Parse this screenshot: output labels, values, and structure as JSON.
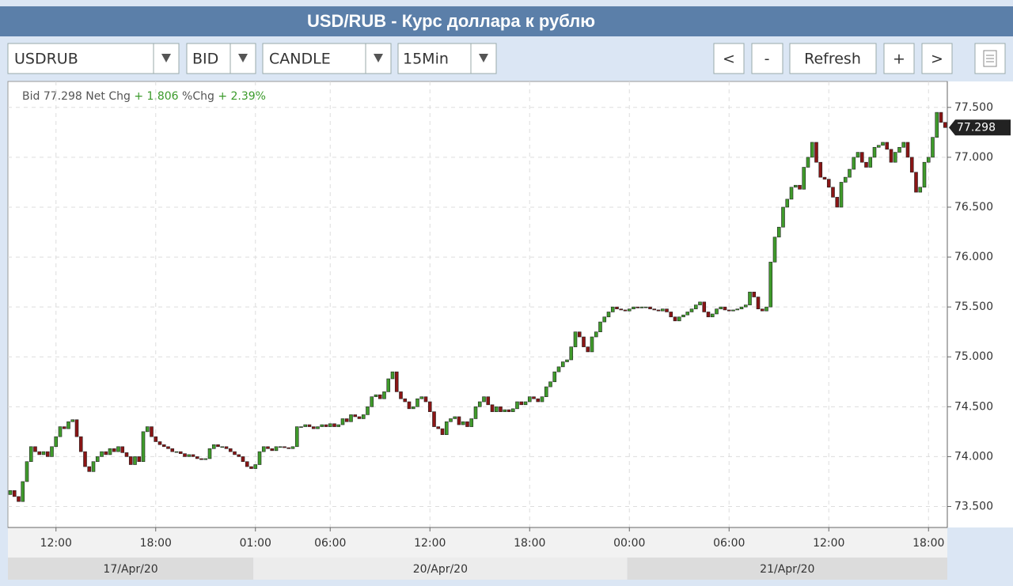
{
  "header": {
    "title": "USD/RUB - Курс доллара к рублю"
  },
  "toolbar": {
    "symbol": "USDRUB",
    "price_type": "BID",
    "chart_style": "CANDLE",
    "interval": "15Min",
    "buttons": [
      "<",
      "-",
      "Refresh",
      "+",
      ">"
    ]
  },
  "chart_data": {
    "type": "candlestick",
    "info": {
      "bid_label": "Bid",
      "net_chg_label": "Net Chg",
      "net_chg": "+ 1.806",
      "pct_chg_label": "%Chg",
      "pct_chg": "+ 2.39%"
    },
    "up_color": "#3f9b2b",
    "down_color": "#8a1515",
    "open": [
      73.62,
      73.66,
      73.6,
      73.55,
      73.75,
      73.95,
      74.1,
      74.05,
      74.02,
      74.05,
      74.0,
      74.1,
      74.2,
      74.3,
      74.28,
      74.35,
      74.37,
      74.2,
      74.05,
      73.9,
      73.85,
      73.95,
      74.0,
      74.05,
      74.02,
      74.08,
      74.05,
      74.1,
      74.04,
      74.0,
      73.92,
      74.0,
      73.95,
      74.25,
      74.3,
      74.2,
      74.15,
      74.12,
      74.1,
      74.08,
      74.05,
      74.05,
      74.03,
      74.0,
      74.02,
      74.0,
      73.98,
      73.97,
      73.98,
      74.08,
      74.12,
      74.1,
      74.1,
      74.08,
      74.05,
      74.02,
      74.0,
      73.95,
      73.9,
      73.88,
      73.92,
      74.05,
      74.1,
      74.08,
      74.06,
      74.1,
      74.1,
      74.09,
      74.08,
      74.1,
      74.3,
      74.3,
      74.32,
      74.3,
      74.28,
      74.3,
      74.32,
      74.3,
      74.33,
      74.3,
      74.32,
      74.38,
      74.35,
      74.42,
      74.4,
      74.38,
      74.42,
      74.5,
      74.6,
      74.62,
      74.58,
      74.65,
      74.78,
      74.85,
      74.65,
      74.58,
      74.55,
      74.48,
      74.5,
      74.58,
      74.6,
      74.55,
      74.45,
      74.3,
      74.28,
      74.22,
      74.35,
      74.38,
      74.4,
      74.32,
      74.35,
      74.3,
      74.38,
      74.5,
      74.55,
      74.6,
      74.52,
      74.45,
      74.5,
      74.45,
      74.47,
      74.45,
      74.48,
      74.55,
      74.52,
      74.55,
      74.6,
      74.58,
      74.55,
      74.6,
      74.7,
      74.75,
      74.85,
      74.9,
      74.95,
      74.97,
      75.1,
      75.25,
      75.2,
      75.1,
      75.05,
      75.2,
      75.25,
      75.35,
      75.4,
      75.45,
      75.5,
      75.48,
      75.47,
      75.46,
      75.48,
      75.5,
      75.49,
      75.5,
      75.5,
      75.48,
      75.47,
      75.46,
      75.48,
      75.45,
      75.4,
      75.36,
      75.4,
      75.42,
      75.45,
      75.48,
      75.52,
      75.55,
      75.45,
      75.4,
      75.43,
      75.48,
      75.5,
      75.47,
      75.46,
      75.47,
      75.48,
      75.5,
      75.52,
      75.65,
      75.6,
      75.48,
      75.46,
      75.5,
      75.95,
      76.2,
      76.3,
      76.5,
      76.58,
      76.7,
      76.72,
      76.68,
      76.9,
      77.0,
      77.15,
      76.95,
      76.8,
      76.78,
      76.7,
      76.6,
      76.5,
      76.75,
      76.8,
      76.88,
      77.0,
      77.05,
      76.95,
      76.9,
      77.0,
      77.1,
      77.12,
      77.15,
      77.08,
      76.95,
      77.05,
      77.1,
      77.15,
      77.0,
      76.85,
      76.65,
      76.7,
      76.95,
      77.0,
      77.2,
      77.45,
      77.35
    ],
    "close": [
      73.66,
      73.6,
      73.55,
      73.75,
      73.95,
      74.1,
      74.05,
      74.02,
      74.05,
      74.0,
      74.1,
      74.2,
      74.3,
      74.28,
      74.35,
      74.37,
      74.2,
      74.05,
      73.9,
      73.85,
      73.95,
      74.0,
      74.05,
      74.02,
      74.08,
      74.05,
      74.1,
      74.04,
      74.0,
      73.92,
      74.0,
      73.95,
      74.25,
      74.3,
      74.2,
      74.15,
      74.12,
      74.1,
      74.08,
      74.05,
      74.05,
      74.03,
      74.0,
      74.02,
      74.0,
      73.98,
      73.97,
      73.98,
      74.08,
      74.12,
      74.1,
      74.1,
      74.08,
      74.05,
      74.02,
      74.0,
      73.95,
      73.9,
      73.88,
      73.92,
      74.05,
      74.1,
      74.08,
      74.06,
      74.1,
      74.1,
      74.09,
      74.08,
      74.1,
      74.3,
      74.3,
      74.32,
      74.3,
      74.28,
      74.3,
      74.32,
      74.3,
      74.33,
      74.3,
      74.32,
      74.38,
      74.35,
      74.42,
      74.4,
      74.38,
      74.42,
      74.5,
      74.6,
      74.62,
      74.58,
      74.65,
      74.78,
      74.85,
      74.65,
      74.58,
      74.55,
      74.48,
      74.5,
      74.58,
      74.6,
      74.55,
      74.45,
      74.3,
      74.28,
      74.22,
      74.35,
      74.38,
      74.4,
      74.32,
      74.35,
      74.3,
      74.38,
      74.5,
      74.55,
      74.6,
      74.52,
      74.45,
      74.5,
      74.45,
      74.47,
      74.45,
      74.48,
      74.55,
      74.52,
      74.55,
      74.6,
      74.58,
      74.55,
      74.6,
      74.7,
      74.75,
      74.85,
      74.9,
      74.95,
      74.97,
      75.1,
      75.25,
      75.2,
      75.1,
      75.05,
      75.2,
      75.25,
      75.35,
      75.4,
      75.45,
      75.5,
      75.48,
      75.47,
      75.46,
      75.48,
      75.5,
      75.49,
      75.5,
      75.5,
      75.48,
      75.47,
      75.46,
      75.48,
      75.45,
      75.4,
      75.36,
      75.4,
      75.42,
      75.45,
      75.48,
      75.52,
      75.55,
      75.45,
      75.4,
      75.43,
      75.48,
      75.5,
      75.47,
      75.46,
      75.47,
      75.48,
      75.5,
      75.52,
      75.65,
      75.6,
      75.48,
      75.46,
      75.5,
      75.95,
      76.2,
      76.3,
      76.5,
      76.58,
      76.7,
      76.72,
      76.68,
      76.9,
      77.0,
      77.15,
      76.95,
      76.8,
      76.78,
      76.7,
      76.6,
      76.5,
      76.75,
      76.8,
      76.88,
      77.0,
      77.05,
      76.95,
      76.9,
      77.0,
      77.1,
      77.12,
      77.15,
      77.08,
      76.95,
      77.05,
      77.1,
      77.15,
      77.0,
      76.85,
      76.65,
      76.7,
      76.95,
      77.0,
      77.2,
      77.45,
      77.35,
      77.298
    ],
    "ylim": [
      73.29,
      77.76
    ],
    "yticks": [
      {
        "value": 73.5,
        "label": "73.500"
      },
      {
        "value": 74,
        "label": "74.000"
      },
      {
        "value": 74.5,
        "label": "74.500"
      },
      {
        "value": 75,
        "label": "75.000"
      },
      {
        "value": 75.5,
        "label": "75.500"
      },
      {
        "value": 76,
        "label": "76.000"
      },
      {
        "value": 76.5,
        "label": "76.500"
      },
      {
        "value": 77,
        "label": "77.000"
      },
      {
        "value": 77.5,
        "label": "77.500"
      }
    ],
    "xticks": [
      {
        "value": 11,
        "label": "12:00"
      },
      {
        "value": 35,
        "label": "18:00"
      },
      {
        "value": 59,
        "label": "01:00"
      },
      {
        "value": 77,
        "label": "06:00"
      },
      {
        "value": 101,
        "label": "12:00"
      },
      {
        "value": 125,
        "label": "18:00"
      },
      {
        "value": 149,
        "label": "00:00"
      },
      {
        "value": 173,
        "label": "06:00"
      },
      {
        "value": 197,
        "label": "12:00"
      },
      {
        "value": 221,
        "label": "18:00"
      }
    ],
    "date_bands": [
      {
        "label": "17/Apr/20",
        "start": 0,
        "end": 59
      },
      {
        "label": "20/Apr/20",
        "start": 59,
        "end": 149
      },
      {
        "label": "21/Apr/20",
        "start": 149,
        "end": 225
      }
    ],
    "grid": true
  }
}
